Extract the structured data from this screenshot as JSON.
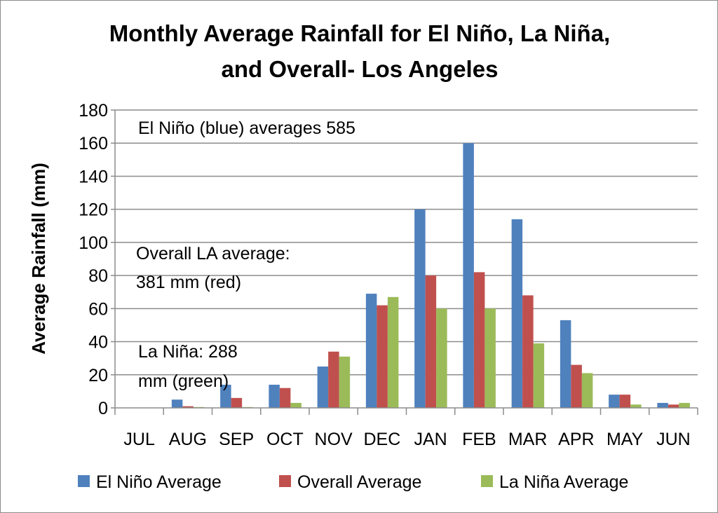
{
  "chart_data": {
    "type": "bar",
    "title_lines": [
      "Monthly Average Rainfall for El Niño, La Niña,",
      "and Overall- Los Angeles"
    ],
    "xlabel": "",
    "ylabel": "Average Rainfall (mm)",
    "ylim": [
      0,
      180
    ],
    "yticks": [
      0,
      20,
      40,
      60,
      80,
      100,
      120,
      140,
      160,
      180
    ],
    "grid": true,
    "legend_position": "bottom",
    "categories": [
      "JUL",
      "AUG",
      "SEP",
      "OCT",
      "NOV",
      "DEC",
      "JAN",
      "FEB",
      "MAR",
      "APR",
      "MAY",
      "JUN"
    ],
    "series": [
      {
        "name": "El Niño Average",
        "color": "#4f81bd",
        "values": [
          0,
          5,
          14,
          14,
          25,
          69,
          120,
          160,
          114,
          53,
          8,
          3
        ]
      },
      {
        "name": "Overall Average",
        "color": "#c0504d",
        "values": [
          0,
          1,
          6,
          12,
          34,
          62,
          80,
          82,
          68,
          26,
          8,
          2
        ]
      },
      {
        "name": "La Niña Average",
        "color": "#9bbb59",
        "values": [
          0,
          0.5,
          0.5,
          3,
          31,
          67,
          60,
          60,
          39,
          21,
          2,
          3
        ]
      }
    ],
    "annotations": [
      {
        "lines": [
          "El Niño (blue) averages 585"
        ]
      },
      {
        "lines": [
          "Overall LA average:",
          "381 mm (red)"
        ]
      },
      {
        "lines": [
          "La Niña: 288",
          "mm (green)"
        ]
      }
    ]
  }
}
